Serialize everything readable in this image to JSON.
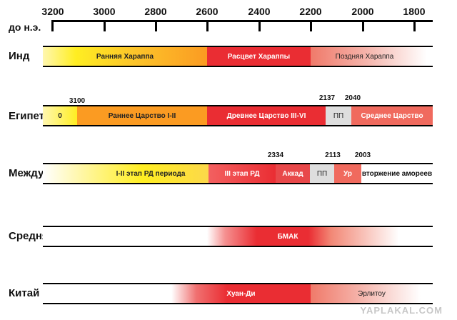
{
  "axis": {
    "era_label": "до н.э.",
    "ticks": [
      "3200",
      "3000",
      "2800",
      "2600",
      "2400",
      "2200",
      "2000",
      "1800"
    ]
  },
  "rows": [
    {
      "name": "Инд",
      "segments": [
        {
          "label": "Ранняя Хараппа",
          "start": 3200,
          "end": 2600
        },
        {
          "label": "Расцвет Хараппы",
          "start": 2600,
          "end": 2200
        },
        {
          "label": "Поздняя Хараппа",
          "start": 2200,
          "end": 1900
        }
      ],
      "dates": []
    },
    {
      "name": "Египет",
      "segments": [
        {
          "label": "0",
          "start": 3200,
          "end": 3100
        },
        {
          "label": "Раннее Царство I-II",
          "start": 3100,
          "end": 2600
        },
        {
          "label": "Древнее Царство III-VI",
          "start": 2600,
          "end": 2137
        },
        {
          "label": "ПП",
          "start": 2137,
          "end": 2040
        },
        {
          "label": "Среднее Царство",
          "start": 2040,
          "end": 1800
        }
      ],
      "dates": [
        "3100",
        "2137",
        "2040"
      ]
    },
    {
      "name": "Междуречье",
      "segments": [
        {
          "label": "I-II этап РД периода",
          "start": 3200,
          "end": 2600
        },
        {
          "label": "III этап РД",
          "start": 2600,
          "end": 2400
        },
        {
          "label": "Аккад",
          "start": 2400,
          "end": 2334
        },
        {
          "label": "ПП",
          "start": 2334,
          "end": 2113
        },
        {
          "label": "Ур",
          "start": 2113,
          "end": 2003
        },
        {
          "label": "вторжение амореев",
          "start": 2003,
          "end": 1800
        }
      ],
      "dates": [
        "2334",
        "2113",
        "2003"
      ]
    },
    {
      "name": "Средняя Азия",
      "segments": [
        {
          "label": "БМАК",
          "start": 2650,
          "end": 2200
        }
      ],
      "qmark": "???",
      "dates": []
    },
    {
      "name": "Китай",
      "segments": [
        {
          "label": "Хуан-Ди",
          "start": 2700,
          "end": 2200
        },
        {
          "label": "Эрлитоу",
          "start": 2200,
          "end": 1800
        }
      ],
      "qmark": "???",
      "dates": []
    }
  ],
  "watermark": "YAPLAKAL.COM",
  "colors": {
    "yellow": "#ffee22",
    "orange": "#fb9b22",
    "red": "#ea2d33",
    "pink": "#f06a5e",
    "gray": "#dedede"
  }
}
